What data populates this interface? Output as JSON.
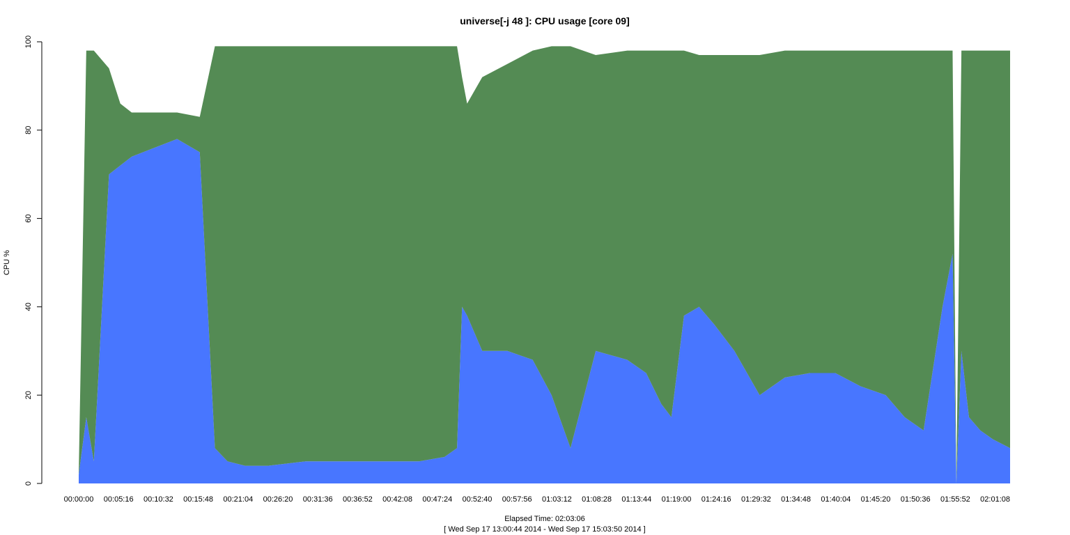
{
  "chart_data": {
    "type": "area",
    "title": "universe[-j 48  ]: CPU usage [core 09]",
    "ylabel": "CPU %",
    "xlabel": "Elapsed Time: 02:03:06",
    "subtitle": "[ Wed Sep 17 13:00:44 2014 - Wed Sep 17 15:03:50 2014 ]",
    "ylim": [
      0,
      100
    ],
    "xlim_seconds": [
      0,
      7386
    ],
    "y_ticks": [
      "0",
      "20",
      "40",
      "60",
      "80",
      "100"
    ],
    "x_tick_labels": [
      "00:00:00",
      "00:05:16",
      "00:10:32",
      "00:15:48",
      "00:21:04",
      "00:26:20",
      "00:31:36",
      "00:36:52",
      "00:42:08",
      "00:47:24",
      "00:52:40",
      "00:57:56",
      "01:03:12",
      "01:08:28",
      "01:13:44",
      "01:19:00",
      "01:24:16",
      "01:29:32",
      "01:34:48",
      "01:40:04",
      "01:45:20",
      "01:50:36",
      "01:55:52",
      "02:01:08"
    ],
    "colors": {
      "user": "#4876ff",
      "system": "#548b54"
    },
    "stacked": true,
    "series": [
      {
        "key": "user",
        "x": [
          0,
          60,
          120,
          240,
          330,
          420,
          600,
          780,
          960,
          1080,
          1180,
          1320,
          1500,
          1800,
          2100,
          2400,
          2700,
          2900,
          3000,
          3040,
          3080,
          3200,
          3400,
          3600,
          3750,
          3900,
          4100,
          4350,
          4500,
          4620,
          4700,
          4800,
          4920,
          5040,
          5200,
          5400,
          5600,
          5800,
          6000,
          6200,
          6400,
          6550,
          6700,
          6850,
          6930,
          6960,
          7000,
          7060,
          7150,
          7250,
          7386
        ],
        "y": [
          2,
          15,
          5,
          70,
          72,
          74,
          76,
          78,
          75,
          8,
          5,
          4,
          4,
          5,
          5,
          5,
          5,
          6,
          8,
          40,
          38,
          30,
          30,
          28,
          20,
          8,
          30,
          28,
          25,
          18,
          15,
          38,
          40,
          36,
          30,
          20,
          24,
          25,
          25,
          22,
          20,
          15,
          12,
          40,
          52,
          0,
          30,
          15,
          12,
          10,
          8
        ]
      },
      {
        "key": "system",
        "x": [
          0,
          60,
          120,
          240,
          330,
          420,
          600,
          780,
          960,
          1080,
          1180,
          1320,
          1500,
          1800,
          2100,
          2400,
          2700,
          2900,
          3000,
          3040,
          3080,
          3200,
          3400,
          3600,
          3750,
          3900,
          4100,
          4350,
          4500,
          4620,
          4700,
          4800,
          4920,
          5040,
          5200,
          5400,
          5600,
          5800,
          6000,
          6200,
          6400,
          6550,
          6700,
          6850,
          6930,
          6960,
          7000,
          7060,
          7150,
          7250,
          7386
        ],
        "y": [
          0,
          83,
          93,
          24,
          14,
          10,
          8,
          6,
          8,
          91,
          94,
          95,
          95,
          94,
          94,
          94,
          94,
          93,
          91,
          52,
          48,
          62,
          65,
          70,
          79,
          91,
          67,
          70,
          73,
          80,
          83,
          60,
          57,
          61,
          67,
          77,
          74,
          73,
          73,
          76,
          78,
          83,
          86,
          58,
          46,
          0,
          68,
          83,
          86,
          88,
          90
        ]
      }
    ]
  }
}
